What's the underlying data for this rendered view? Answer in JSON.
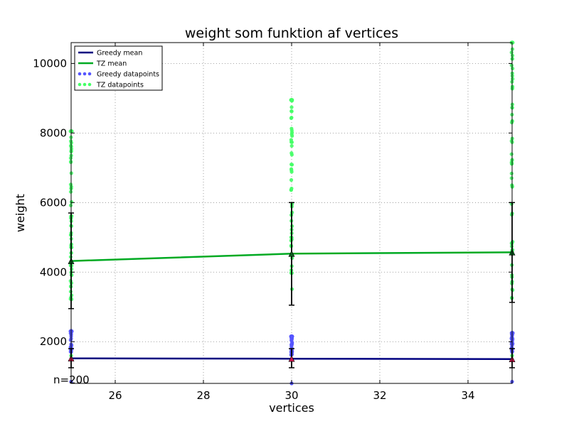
{
  "chart_data": {
    "type": "line",
    "title": "weight som funktion af vertices",
    "xlabel": "vertices",
    "ylabel": "weight",
    "xlim": [
      25,
      35
    ],
    "ylim": [
      800,
      10600
    ],
    "xticks": [
      26,
      28,
      30,
      32,
      34
    ],
    "yticks": [
      2000,
      4000,
      6000,
      8000,
      10000
    ],
    "grid": "dotted",
    "legend_position": "top-left",
    "annotation": "n=200",
    "legend": [
      "Greedy mean",
      "TZ mean",
      "Greedy datapoints",
      "TZ datapoints"
    ],
    "series": [
      {
        "name": "Greedy mean",
        "color": "#000080",
        "x": [
          25,
          30,
          35
        ],
        "y": [
          1520,
          1510,
          1500
        ],
        "error": [
          [
            1250,
            1800
          ],
          [
            1250,
            1800
          ],
          [
            1250,
            1800
          ]
        ],
        "marker_color": "#cc1a4d"
      },
      {
        "name": "TZ mean",
        "color": "#00aa22",
        "x": [
          25,
          30,
          35
        ],
        "y": [
          4320,
          4530,
          4570
        ],
        "error": [
          [
            2950,
            5700
          ],
          [
            3050,
            6000
          ],
          [
            3130,
            6000
          ]
        ],
        "marker_color": "#0b5d1e"
      },
      {
        "name": "Greedy datapoints",
        "color": "#5555ff",
        "x": [
          25,
          30,
          35
        ],
        "range": [
          [
            850,
            2300
          ],
          [
            800,
            2150
          ],
          [
            850,
            2250
          ]
        ]
      },
      {
        "name": "TZ datapoints",
        "color": "#44ff66",
        "x": [
          25,
          30,
          35
        ],
        "range": [
          [
            1600,
            8050
          ],
          [
            1750,
            8950
          ],
          [
            1600,
            10600
          ]
        ]
      }
    ]
  }
}
